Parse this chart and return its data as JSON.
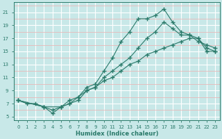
{
  "title": "",
  "xlabel": "Humidex (Indice chaleur)",
  "ylabel": "",
  "bg_color": "#c8e8e8",
  "line_color": "#2a7a6a",
  "grid_major_color": "#ffffff",
  "grid_minor_color": "#e8b8b8",
  "xlim": [
    -0.5,
    23.5
  ],
  "ylim": [
    4.5,
    22.5
  ],
  "xticks": [
    0,
    1,
    2,
    3,
    4,
    5,
    6,
    7,
    8,
    9,
    10,
    11,
    12,
    13,
    14,
    15,
    16,
    17,
    18,
    19,
    20,
    21,
    22,
    23
  ],
  "yticks": [
    5,
    7,
    9,
    11,
    13,
    15,
    17,
    19,
    21
  ],
  "line1_x": [
    0,
    1,
    2,
    3,
    4,
    5,
    6,
    7,
    8,
    9,
    10,
    11,
    12,
    13,
    14,
    15,
    16,
    17,
    18,
    19,
    20,
    21,
    22,
    23
  ],
  "line1_y": [
    7.5,
    7.0,
    7.0,
    6.5,
    6.0,
    6.5,
    7.5,
    8.0,
    9.5,
    10.0,
    12.0,
    14.0,
    16.5,
    18.0,
    20.0,
    20.0,
    20.5,
    21.5,
    19.5,
    18.0,
    17.5,
    16.5,
    16.0,
    15.5
  ],
  "line2_x": [
    0,
    3,
    4,
    5,
    6,
    7,
    8,
    9,
    10,
    11,
    12,
    13,
    14,
    15,
    16,
    17,
    18,
    19,
    20,
    21,
    22,
    23
  ],
  "line2_y": [
    7.5,
    6.5,
    5.5,
    6.5,
    7.0,
    7.5,
    9.0,
    9.5,
    11.0,
    12.0,
    13.0,
    14.0,
    15.5,
    17.0,
    18.0,
    19.5,
    18.5,
    17.5,
    17.5,
    17.0,
    15.5,
    15.0
  ],
  "line3_x": [
    0,
    3,
    5,
    6,
    7,
    8,
    9,
    10,
    11,
    12,
    13,
    14,
    15,
    16,
    17,
    18,
    19,
    20,
    21,
    22,
    23
  ],
  "line3_y": [
    7.5,
    6.5,
    6.5,
    7.0,
    8.0,
    9.0,
    9.5,
    10.5,
    11.0,
    12.0,
    13.0,
    13.5,
    14.5,
    15.0,
    15.5,
    16.0,
    16.5,
    17.0,
    17.0,
    15.0,
    15.0
  ]
}
